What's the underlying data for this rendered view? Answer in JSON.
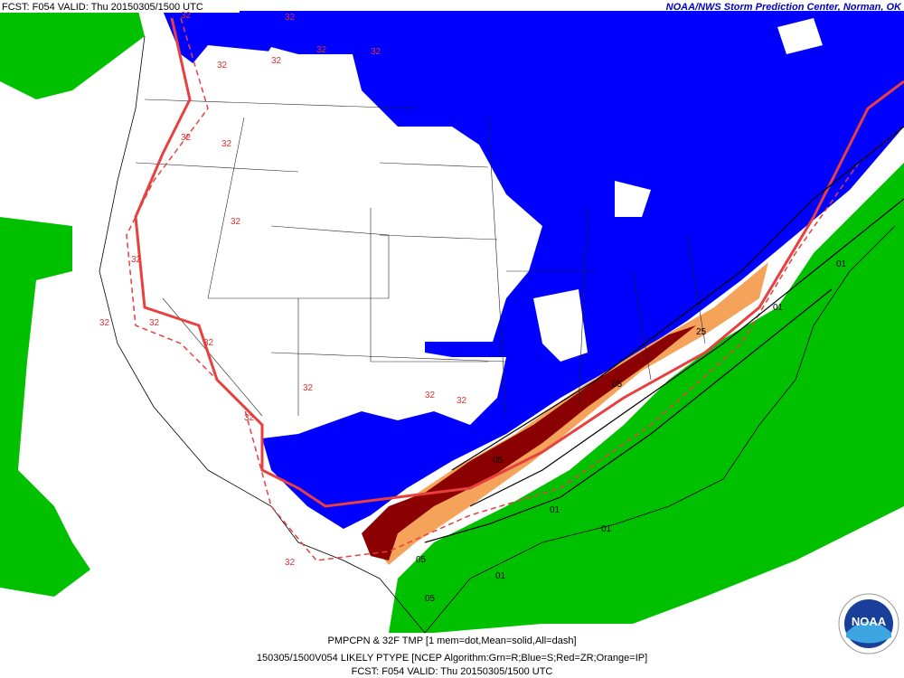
{
  "header": {
    "valid": "FCST: F054  VALID: Thu  20150305/1500 UTC",
    "credit": "NOAA/NWS Storm Prediction Center, Norman, OK"
  },
  "footer": [
    "PMPCPN & 32F TMP [1 mem=dot,Mean=solid,All=dash]",
    "150305/1500V054 LIKELY PTYPE [NCEP Algorithm:Grn=R;Blue=S;Red=ZR;Orange=IP]",
    "FCST: F054  VALID: Thu  20150305/1500 UTC"
  ],
  "logo": "NOAA",
  "map_labels": {
    "temperature": [
      "32",
      "32",
      "32",
      "32",
      "32",
      "32",
      "32",
      "32",
      "32",
      "32",
      "32",
      "32",
      "32",
      "32",
      "32",
      "32",
      "32",
      "32"
    ],
    "precipitation": [
      "05",
      "05",
      "25",
      "01",
      "01",
      "01",
      "01",
      "05",
      "05",
      "01"
    ]
  }
}
